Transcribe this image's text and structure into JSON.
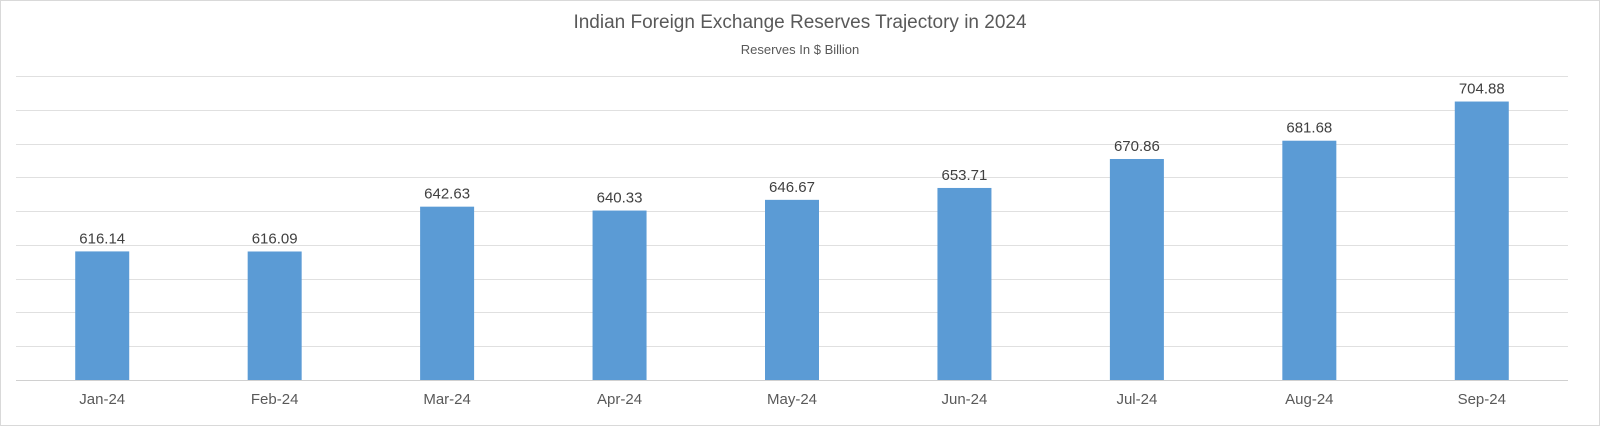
{
  "chart_data": {
    "type": "bar",
    "title": "Indian Foreign Exchange Reserves Trajectory in 2024",
    "subtitle": "Reserves In $ Billion",
    "xlabel": "",
    "ylabel": "",
    "categories": [
      "Jan-24",
      "Feb-24",
      "Mar-24",
      "Apr-24",
      "May-24",
      "Jun-24",
      "Jul-24",
      "Aug-24",
      "Sep-24"
    ],
    "values": [
      616.14,
      616.09,
      642.63,
      640.33,
      646.67,
      653.71,
      670.86,
      681.68,
      704.88
    ],
    "value_labels": [
      "616.14",
      "616.09",
      "642.63",
      "640.33",
      "646.67",
      "653.71",
      "670.86",
      "681.68",
      "704.88"
    ],
    "ylim": [
      540,
      720
    ],
    "gridline_step": 20,
    "grid": true,
    "legend": "none",
    "bar_color": "#5b9bd5",
    "gridline_color": "#e0e0e0"
  }
}
